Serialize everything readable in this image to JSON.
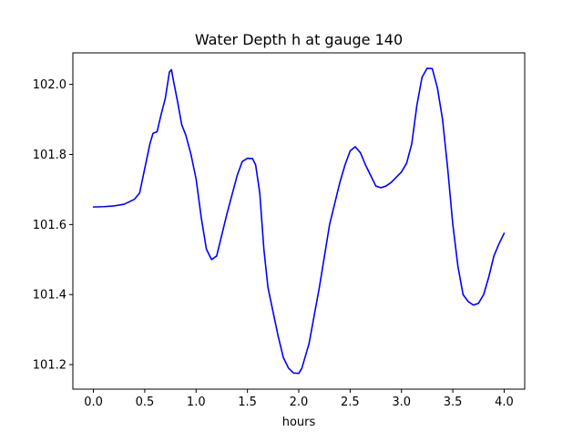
{
  "chart_data": {
    "type": "line",
    "title": "Water Depth h at gauge 140",
    "xlabel": "hours",
    "ylabel": "",
    "xlim": [
      -0.2,
      4.2
    ],
    "ylim": [
      101.13,
      102.09
    ],
    "grid": false,
    "legend": "none",
    "x_ticks": [
      0.0,
      0.5,
      1.0,
      1.5,
      2.0,
      2.5,
      3.0,
      3.5,
      4.0
    ],
    "x_tick_labels": [
      "0.0",
      "0.5",
      "1.0",
      "1.5",
      "2.0",
      "2.5",
      "3.0",
      "3.5",
      "4.0"
    ],
    "y_ticks": [
      101.2,
      101.4,
      101.6,
      101.8,
      102.0
    ],
    "y_tick_labels": [
      "101.2",
      "101.4",
      "101.6",
      "101.8",
      "102.0"
    ],
    "series": [
      {
        "color": "#0000ff",
        "x": [
          0.0,
          0.1,
          0.2,
          0.3,
          0.4,
          0.45,
          0.5,
          0.55,
          0.58,
          0.62,
          0.66,
          0.7,
          0.74,
          0.76,
          0.78,
          0.82,
          0.86,
          0.9,
          0.95,
          1.0,
          1.05,
          1.1,
          1.15,
          1.2,
          1.3,
          1.4,
          1.45,
          1.5,
          1.55,
          1.58,
          1.62,
          1.66,
          1.7,
          1.75,
          1.8,
          1.85,
          1.9,
          1.95,
          2.0,
          2.03,
          2.1,
          2.2,
          2.3,
          2.4,
          2.45,
          2.5,
          2.55,
          2.6,
          2.65,
          2.7,
          2.75,
          2.8,
          2.85,
          2.9,
          2.95,
          3.0,
          3.05,
          3.1,
          3.15,
          3.2,
          3.25,
          3.3,
          3.35,
          3.4,
          3.45,
          3.5,
          3.55,
          3.6,
          3.65,
          3.7,
          3.75,
          3.8,
          3.85,
          3.9,
          3.95,
          4.0
        ],
        "y": [
          101.65,
          101.651,
          101.653,
          101.658,
          101.672,
          101.69,
          101.76,
          101.83,
          101.86,
          101.865,
          101.915,
          101.96,
          102.035,
          102.042,
          102.01,
          101.95,
          101.885,
          101.855,
          101.8,
          101.73,
          101.62,
          101.53,
          101.5,
          101.51,
          101.63,
          101.74,
          101.78,
          101.789,
          101.788,
          101.77,
          101.69,
          101.53,
          101.42,
          101.35,
          101.28,
          101.22,
          101.19,
          101.176,
          101.175,
          101.19,
          101.26,
          101.42,
          101.6,
          101.72,
          101.77,
          101.81,
          101.822,
          101.805,
          101.77,
          101.74,
          101.71,
          101.705,
          101.71,
          101.72,
          101.735,
          101.75,
          101.775,
          101.83,
          101.94,
          102.02,
          102.046,
          102.045,
          101.99,
          101.9,
          101.76,
          101.6,
          101.48,
          101.4,
          101.38,
          101.37,
          101.375,
          101.4,
          101.45,
          101.51,
          101.545,
          101.575
        ]
      }
    ]
  }
}
